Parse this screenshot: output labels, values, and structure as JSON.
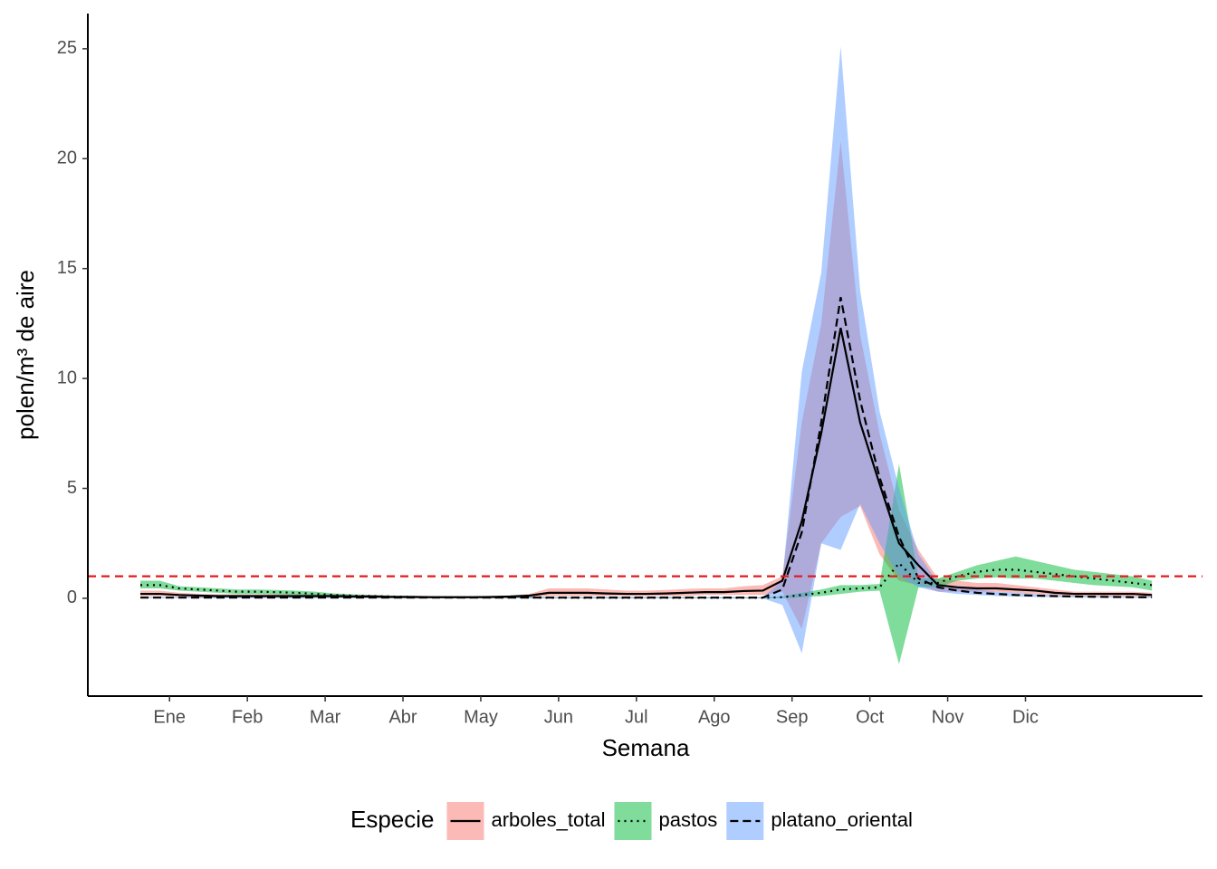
{
  "chart_data": {
    "type": "line",
    "xlabel": "Semana",
    "ylabel": "polen/m³ de aire",
    "legend_title": "Especie",
    "legend_position": "bottom",
    "x": [
      1,
      2,
      3,
      4,
      5,
      6,
      7,
      8,
      9,
      10,
      11,
      12,
      13,
      14,
      15,
      16,
      17,
      18,
      19,
      20,
      21,
      22,
      23,
      24,
      25,
      26,
      27,
      28,
      29,
      30,
      31,
      32,
      33,
      34,
      35,
      36,
      37,
      38,
      39,
      40,
      41,
      42,
      43,
      44,
      45,
      46,
      47,
      48,
      49,
      50,
      51,
      52,
      53
    ],
    "xlim": [
      -1.7,
      55.6
    ],
    "xticks": [
      {
        "value": 2.5,
        "label": "Ene"
      },
      {
        "value": 6.5,
        "label": "Feb"
      },
      {
        "value": 10.5,
        "label": "Mar"
      },
      {
        "value": 14.5,
        "label": "Abr"
      },
      {
        "value": 18.5,
        "label": "May"
      },
      {
        "value": 22.5,
        "label": "Jun"
      },
      {
        "value": 26.5,
        "label": "Jul"
      },
      {
        "value": 30.5,
        "label": "Ago"
      },
      {
        "value": 34.5,
        "label": "Sep"
      },
      {
        "value": 38.5,
        "label": "Oct"
      },
      {
        "value": 42.5,
        "label": "Nov"
      },
      {
        "value": 46.5,
        "label": "Dic"
      }
    ],
    "ylim": [
      -4.45,
      26.6
    ],
    "yticks": [
      0,
      5,
      10,
      15,
      20,
      25
    ],
    "hline": {
      "value": 1,
      "color": "#e41a1c"
    },
    "series": [
      {
        "name": "arboles_total",
        "color": "#F8766D",
        "linetype": "solid",
        "values": [
          0.2,
          0.2,
          0.15,
          0.12,
          0.1,
          0.1,
          0.1,
          0.1,
          0.1,
          0.1,
          0.1,
          0.08,
          0.08,
          0.06,
          0.06,
          0.05,
          0.05,
          0.05,
          0.06,
          0.08,
          0.12,
          0.25,
          0.25,
          0.25,
          0.22,
          0.2,
          0.2,
          0.22,
          0.25,
          0.28,
          0.28,
          0.33,
          0.35,
          0.8,
          3.5,
          7.5,
          12.3,
          8,
          5.2,
          2.5,
          1.5,
          0.6,
          0.5,
          0.45,
          0.45,
          0.4,
          0.35,
          0.25,
          0.2,
          0.2,
          0.2,
          0.2,
          0.15
        ],
        "lower": [
          0.1,
          0.1,
          0.08,
          0.06,
          0.05,
          0.05,
          0.05,
          0.05,
          0.05,
          0.05,
          0.05,
          0.04,
          0.04,
          0.03,
          0.03,
          0.02,
          0.02,
          0.02,
          0.03,
          0.04,
          0.06,
          0.1,
          0.1,
          0.1,
          0.1,
          0.1,
          0.1,
          0.1,
          0.1,
          0.15,
          0.15,
          0.15,
          0.15,
          0.3,
          -1.4,
          2.5,
          3.7,
          4.2,
          2,
          0.8,
          0.6,
          0.3,
          0.3,
          0.3,
          0.3,
          0.25,
          0.2,
          0.15,
          0.1,
          0.1,
          0.1,
          0.1,
          0.08
        ],
        "upper": [
          0.35,
          0.35,
          0.25,
          0.2,
          0.18,
          0.18,
          0.18,
          0.18,
          0.18,
          0.18,
          0.18,
          0.15,
          0.15,
          0.12,
          0.12,
          0.1,
          0.1,
          0.1,
          0.1,
          0.13,
          0.2,
          0.45,
          0.45,
          0.45,
          0.4,
          0.35,
          0.35,
          0.38,
          0.42,
          0.45,
          0.45,
          0.55,
          0.6,
          1.0,
          8,
          12.5,
          20.8,
          12,
          7.5,
          4,
          2.2,
          0.9,
          0.8,
          0.7,
          0.7,
          0.6,
          0.5,
          0.4,
          0.3,
          0.3,
          0.3,
          0.3,
          0.25
        ]
      },
      {
        "name": "pastos",
        "color": "#00BA38",
        "linetype": "dotted",
        "values": [
          0.6,
          0.6,
          0.45,
          0.4,
          0.35,
          0.3,
          0.3,
          0.28,
          0.25,
          0.2,
          0.15,
          0.12,
          0.1,
          0.08,
          0.06,
          0.05,
          0.04,
          0.04,
          0.04,
          0.04,
          0.04,
          0.02,
          0.02,
          0.02,
          0.02,
          0.02,
          0.02,
          0.02,
          0.02,
          0.02,
          0.02,
          0.02,
          0.02,
          0.05,
          0.15,
          0.25,
          0.4,
          0.45,
          0.5,
          1.6,
          0.7,
          0.7,
          1.0,
          1.2,
          1.3,
          1.3,
          1.2,
          1.1,
          1.0,
          0.9,
          0.8,
          0.7,
          0.6
        ],
        "lower": [
          0.45,
          0.45,
          0.35,
          0.3,
          0.25,
          0.2,
          0.2,
          0.18,
          0.15,
          0.12,
          0.08,
          0.06,
          0.05,
          0.04,
          0.03,
          0.02,
          0.01,
          0.01,
          0.01,
          0.01,
          0.01,
          0,
          0,
          0,
          0,
          0,
          0,
          0,
          0,
          0,
          0,
          0,
          0,
          0,
          0.05,
          0.1,
          0.2,
          0.3,
          0.35,
          -3,
          0.5,
          0.5,
          0.8,
          0.9,
          0.95,
          0.9,
          0.9,
          0.8,
          0.7,
          0.6,
          0.55,
          0.5,
          0.35
        ],
        "upper": [
          0.8,
          0.8,
          0.55,
          0.5,
          0.45,
          0.4,
          0.4,
          0.38,
          0.35,
          0.3,
          0.22,
          0.18,
          0.15,
          0.12,
          0.1,
          0.08,
          0.07,
          0.07,
          0.07,
          0.07,
          0.07,
          0.04,
          0.04,
          0.04,
          0.04,
          0.04,
          0.04,
          0.04,
          0.04,
          0.04,
          0.04,
          0.04,
          0.04,
          0.1,
          0.25,
          0.4,
          0.6,
          0.6,
          0.65,
          6.1,
          0.9,
          0.9,
          1.2,
          1.5,
          1.7,
          1.9,
          1.7,
          1.5,
          1.3,
          1.2,
          1.1,
          1.0,
          0.8
        ]
      },
      {
        "name": "platano_oriental",
        "color": "#619CFF",
        "linetype": "dashed",
        "values": [
          0.03,
          0.03,
          0.03,
          0.03,
          0.03,
          0.03,
          0.03,
          0.03,
          0.03,
          0.03,
          0.03,
          0.03,
          0.03,
          0.03,
          0.03,
          0.03,
          0.03,
          0.03,
          0.03,
          0.03,
          0.03,
          0.03,
          0.03,
          0.03,
          0.03,
          0.03,
          0.03,
          0.03,
          0.03,
          0.03,
          0.03,
          0.03,
          0.03,
          0.4,
          3,
          8,
          13.7,
          9,
          5.5,
          2.8,
          0.9,
          0.5,
          0.35,
          0.25,
          0.2,
          0.15,
          0.12,
          0.1,
          0.08,
          0.07,
          0.06,
          0.05,
          0.05
        ],
        "lower": [
          0,
          0,
          0,
          0,
          0,
          0,
          0,
          0,
          0,
          0,
          0,
          0,
          0,
          0,
          0,
          0,
          0,
          0,
          0,
          0,
          0,
          0,
          0,
          0,
          0,
          0,
          0,
          0,
          0,
          0,
          0,
          0,
          0,
          -0.3,
          -2.5,
          2.5,
          2.2,
          4.3,
          2.5,
          1,
          0.5,
          0.3,
          0.2,
          0.15,
          0.1,
          0.08,
          0.06,
          0.05,
          0.04,
          0.03,
          0.03,
          0.02,
          0.02
        ],
        "upper": [
          0.06,
          0.06,
          0.06,
          0.06,
          0.06,
          0.06,
          0.06,
          0.06,
          0.06,
          0.06,
          0.06,
          0.06,
          0.06,
          0.06,
          0.06,
          0.06,
          0.06,
          0.06,
          0.06,
          0.06,
          0.06,
          0.06,
          0.06,
          0.06,
          0.06,
          0.06,
          0.06,
          0.06,
          0.06,
          0.06,
          0.06,
          0.06,
          0.06,
          0.8,
          10.3,
          14.8,
          25.1,
          14,
          8.5,
          5,
          2,
          0.7,
          0.5,
          0.4,
          0.3,
          0.25,
          0.2,
          0.15,
          0.12,
          0.1,
          0.1,
          0.08,
          0.08
        ]
      }
    ]
  }
}
